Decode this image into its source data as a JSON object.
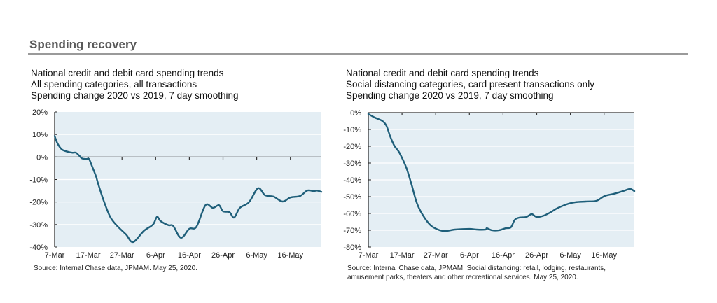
{
  "section": {
    "title": "Spending recovery"
  },
  "chart_data": [
    {
      "type": "line",
      "title_lines": [
        "National credit and debit card spending trends",
        "All spending categories, all transactions",
        "Spending change 2020 vs 2019, 7 day smoothing"
      ],
      "xlabel": "",
      "ylabel": "",
      "x_unit": "days since 7-Mar-2020",
      "xlim": [
        0,
        79
      ],
      "ylim": [
        -40,
        20
      ],
      "y_ticks": [
        20,
        10,
        0,
        -10,
        -20,
        -30,
        -40
      ],
      "y_tick_labels": [
        "20%",
        "10%",
        "0%",
        "-10%",
        "-20%",
        "-30%",
        "-40%"
      ],
      "x_ticks": [
        0,
        10,
        20,
        30,
        40,
        50,
        60,
        70
      ],
      "x_tick_labels": [
        "7-Mar",
        "17-Mar",
        "27-Mar",
        "6-Apr",
        "16-Apr",
        "26-Apr",
        "6-May",
        "16-May"
      ],
      "grid": true,
      "zero_line": true,
      "legend": "none",
      "series": [
        {
          "name": "All spending categories",
          "color": "#1f5f7a",
          "x": [
            0,
            0.8,
            2.1,
            3.5,
            5.2,
            6.3,
            7.3,
            8.1,
            9.4,
            10.2,
            11,
            12.3,
            12.9,
            14.6,
            16.5,
            18.5,
            21.2,
            23.3,
            26.5,
            29.2,
            30.4,
            31.5,
            33.8,
            35.2,
            37.5,
            40,
            42.1,
            44.8,
            47,
            48.8,
            50,
            51.9,
            53.3,
            55,
            57.7,
            60.4,
            62.5,
            65,
            67.7,
            70,
            72.9,
            75,
            76.9,
            77.9,
            79.2
          ],
          "y": [
            9.3,
            6.2,
            3.4,
            2.5,
            1.9,
            1.9,
            0.6,
            -0.6,
            -0.9,
            -0.9,
            -3.7,
            -8.7,
            -11.8,
            -19.5,
            -26.6,
            -30.5,
            -34.4,
            -37.8,
            -32.8,
            -30,
            -26.6,
            -28.5,
            -30.3,
            -30.6,
            -35.9,
            -31.9,
            -31,
            -21.4,
            -22.6,
            -21.4,
            -24.1,
            -24.5,
            -26.9,
            -22.6,
            -20.1,
            -13.9,
            -17,
            -17.6,
            -19.8,
            -18,
            -17.3,
            -14.9,
            -15.2,
            -14.9,
            -15.5
          ]
        }
      ],
      "source": "Source:  Internal Chase data, JPMAM. May 25, 2020."
    },
    {
      "type": "line",
      "title_lines": [
        "National credit and debit card spending trends",
        "Social distancing categories, card present transactions only",
        "Spending change 2020 vs 2019, 7 day smoothing"
      ],
      "xlabel": "",
      "ylabel": "",
      "x_unit": "days since 7-Mar-2020",
      "xlim": [
        0,
        79
      ],
      "ylim": [
        -80,
        0
      ],
      "y_ticks": [
        0,
        -10,
        -20,
        -30,
        -40,
        -50,
        -60,
        -70,
        -80
      ],
      "y_tick_labels": [
        "0%",
        "-10%",
        "-20%",
        "-30%",
        "-40%",
        "-50%",
        "-60%",
        "-70%",
        "-80%"
      ],
      "x_ticks": [
        0,
        10,
        20,
        30,
        40,
        50,
        60,
        70
      ],
      "x_tick_labels": [
        "7-Mar",
        "17-Mar",
        "27-Mar",
        "6-Apr",
        "16-Apr",
        "26-Apr",
        "6-May",
        "16-May"
      ],
      "grid": true,
      "zero_line": true,
      "legend": "none",
      "series": [
        {
          "name": "Social distancing categories",
          "color": "#1f5f7a",
          "x": [
            0,
            1.9,
            4.2,
            5.4,
            6.5,
            7.7,
            9.2,
            11.3,
            12.9,
            14.4,
            16,
            18.5,
            21.2,
            23.1,
            25.8,
            30,
            32.1,
            34.8,
            35.2,
            36.7,
            38.8,
            40.8,
            42.3,
            43.5,
            44.8,
            46.9,
            48.5,
            50,
            52.1,
            54.2,
            56.3,
            59.4,
            61.5,
            64.6,
            67.7,
            70.2,
            72.9,
            75.6,
            77.7,
            79
          ],
          "y": [
            -0.8,
            -2.9,
            -5,
            -7.9,
            -14.2,
            -19.6,
            -23.8,
            -32.9,
            -43.3,
            -53.8,
            -60.4,
            -67.1,
            -70,
            -70.4,
            -69.6,
            -69.2,
            -69.6,
            -69.6,
            -68.8,
            -70,
            -70,
            -68.8,
            -68.3,
            -63.8,
            -62.5,
            -62.1,
            -60.4,
            -62.1,
            -61.3,
            -59.2,
            -56.7,
            -54.2,
            -53.3,
            -52.9,
            -52.5,
            -49.6,
            -48.3,
            -46.7,
            -45.4,
            -46.7
          ]
        }
      ],
      "source_lines": [
        "Source:  Internal Chase data, JPMAM. Social distancing: retail, lodging, restaurants,",
        "amusement parks, theaters and other recreational services. May 25, 2020."
      ]
    }
  ]
}
